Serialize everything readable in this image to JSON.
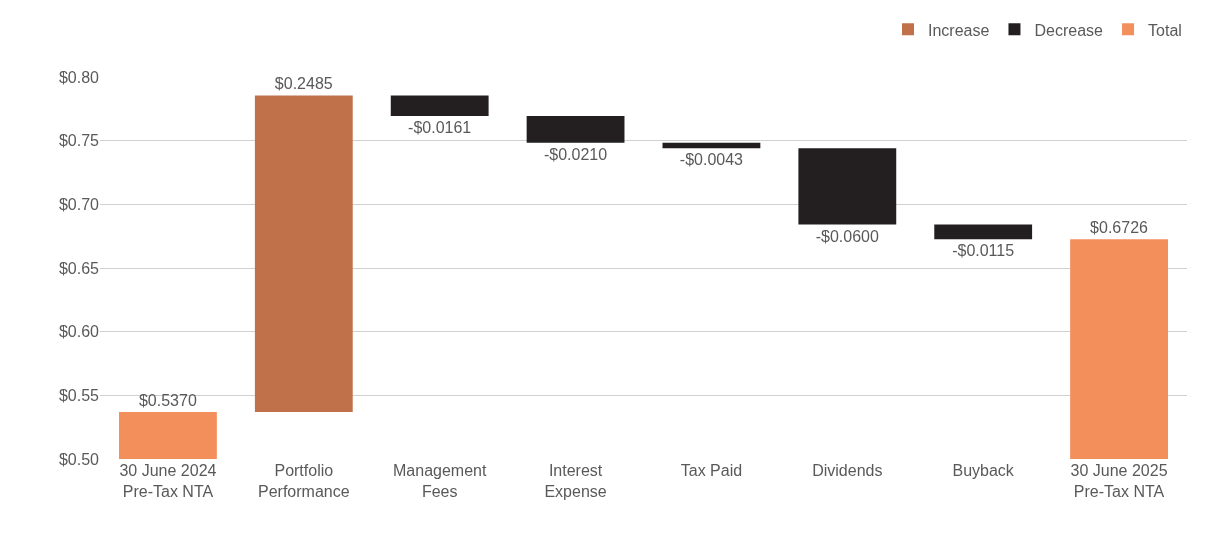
{
  "chart_data": {
    "type": "bar",
    "categories": [
      "30 June 2024\nPre-Tax NTA",
      "Portfolio\nPerformance",
      "Management\nFees",
      "Interest\nExpense",
      "Tax Paid",
      "Dividends",
      "Buyback",
      "30 June 2025\nPre-Tax NTA"
    ],
    "series": [
      {
        "name": "Increase",
        "color": "#c0714a",
        "values": [
          null,
          0.2485,
          null,
          null,
          null,
          null,
          null,
          null
        ],
        "base": [
          null,
          0.537,
          null,
          null,
          null,
          null,
          null,
          null
        ],
        "value_labels": [
          null,
          "$0.2485",
          null,
          null,
          null,
          null,
          null,
          null
        ]
      },
      {
        "name": "Decrease",
        "color": "#231f20",
        "values": [
          null,
          null,
          -0.0161,
          -0.021,
          -0.0043,
          -0.06,
          -0.0115,
          null
        ],
        "base": [
          null,
          null,
          0.7855,
          0.7694,
          0.7484,
          0.7441,
          0.6841,
          null
        ],
        "value_labels": [
          null,
          null,
          "-$0.0161",
          "-$0.0210",
          "-$0.0043",
          "-$0.0600",
          "-$0.0115",
          null
        ]
      },
      {
        "name": "Total",
        "color": "#f28f5b",
        "values": [
          0.537,
          null,
          null,
          null,
          null,
          null,
          null,
          0.6726
        ],
        "value_labels": [
          "$0.5370",
          null,
          null,
          null,
          null,
          null,
          null,
          "$0.6726"
        ]
      }
    ],
    "ylim": [
      0.5,
      0.8
    ],
    "yticks": [
      {
        "value": 0.5,
        "label": "$0.50"
      },
      {
        "value": 0.55,
        "label": "$0.55"
      },
      {
        "value": 0.6,
        "label": "$0.60"
      },
      {
        "value": 0.65,
        "label": "$0.65"
      },
      {
        "value": 0.7,
        "label": "$0.70"
      },
      {
        "value": 0.75,
        "label": "$0.75"
      },
      {
        "value": 0.8,
        "label": "$0.80"
      }
    ],
    "grid": "y",
    "legend": "top right"
  }
}
